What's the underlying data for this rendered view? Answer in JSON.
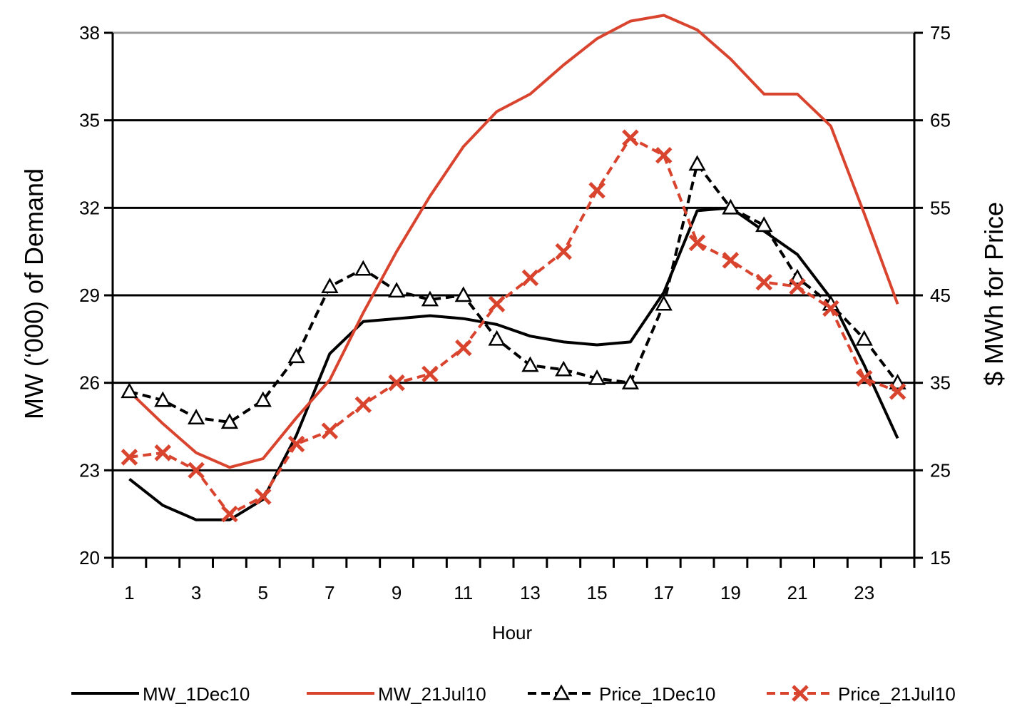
{
  "chart_data": {
    "type": "line",
    "title": "",
    "xlabel": "Hour",
    "ylabel_left": "MW (‘000) of Demand",
    "ylabel_right": "$ MWh for Price",
    "x": [
      1,
      2,
      3,
      4,
      5,
      6,
      7,
      8,
      9,
      10,
      11,
      12,
      13,
      14,
      15,
      16,
      17,
      18,
      19,
      20,
      21,
      22,
      23,
      24
    ],
    "x_tick_labels": [
      "1",
      "3",
      "5",
      "7",
      "9",
      "11",
      "13",
      "15",
      "17",
      "19",
      "21",
      "23"
    ],
    "x_tick_values": [
      1,
      3,
      5,
      7,
      9,
      11,
      13,
      15,
      17,
      19,
      21,
      23
    ],
    "ylim_left": [
      20,
      38
    ],
    "yticks_left": [
      "20",
      "23",
      "26",
      "29",
      "32",
      "35",
      "38"
    ],
    "ylim_right": [
      15,
      75
    ],
    "yticks_right": [
      "15",
      "25",
      "35",
      "45",
      "55",
      "65",
      "75"
    ],
    "grid": "horizontal",
    "legend_position": "bottom",
    "series": [
      {
        "name": "MW_1Dec10",
        "axis": "left",
        "color": "#000000",
        "dash": "solid",
        "marker": "none",
        "values": [
          22.7,
          21.8,
          21.3,
          21.3,
          22.0,
          24.2,
          27.0,
          28.1,
          28.2,
          28.3,
          28.2,
          28.0,
          27.6,
          27.4,
          27.3,
          27.4,
          29.1,
          31.9,
          32.0,
          31.2,
          30.4,
          28.9,
          26.6,
          24.1
        ]
      },
      {
        "name": "MW_21Jul10",
        "axis": "left",
        "color": "#d9442f",
        "dash": "solid",
        "marker": "none",
        "values": [
          25.7,
          24.6,
          23.6,
          23.1,
          23.4,
          24.8,
          26.1,
          28.4,
          30.5,
          32.4,
          34.1,
          35.3,
          35.9,
          36.9,
          37.8,
          38.4,
          38.6,
          38.1,
          37.1,
          35.9,
          35.9,
          34.8,
          31.8,
          28.7
        ]
      },
      {
        "name": "Price_1Dec10",
        "axis": "right",
        "color": "#000000",
        "dash": "dashed",
        "marker": "triangle",
        "values": [
          34,
          33,
          31,
          30.5,
          33,
          38,
          46,
          48,
          45.5,
          44.5,
          45,
          40,
          37,
          36.5,
          35.5,
          35,
          44,
          60,
          55,
          53,
          47,
          44,
          40,
          35
        ]
      },
      {
        "name": "Price_21Jul10",
        "axis": "right",
        "color": "#d9442f",
        "dash": "dashed",
        "marker": "x",
        "values": [
          26.5,
          27,
          25,
          20,
          22,
          28,
          29.5,
          32.5,
          35,
          36,
          39,
          44,
          47,
          50,
          57,
          63,
          61,
          51,
          49,
          46.5,
          46,
          43.5,
          35.5,
          34
        ]
      }
    ]
  }
}
